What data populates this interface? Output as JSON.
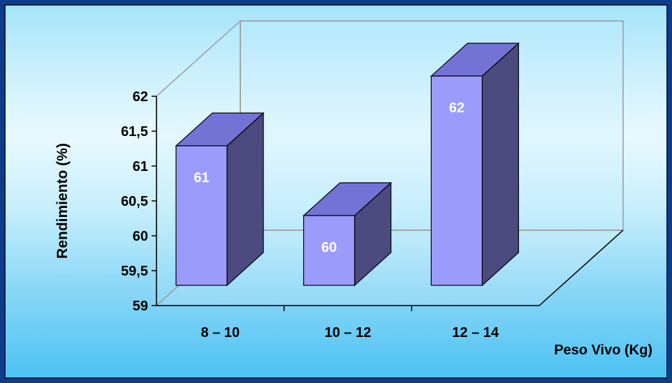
{
  "chart_data": {
    "type": "bar",
    "categories": [
      "8 – 10",
      "10 – 12",
      "12 – 14"
    ],
    "values": [
      61,
      60,
      62
    ],
    "data_labels": [
      "61",
      "60",
      "62"
    ],
    "title": "",
    "xlabel": "Peso Vivo (Kg)",
    "ylabel": "Rendimiento  (%)",
    "ylim": [
      59,
      62
    ],
    "yticks": [
      "59",
      "59,5",
      "60",
      "60,5",
      "61",
      "61,5",
      "62"
    ],
    "grid": false,
    "legend": "none",
    "style": "3d-column",
    "colors": {
      "front": "#9b9bfb",
      "top": "#7373d6",
      "side": "#4b4b80",
      "background": "#0d3c8a"
    }
  }
}
